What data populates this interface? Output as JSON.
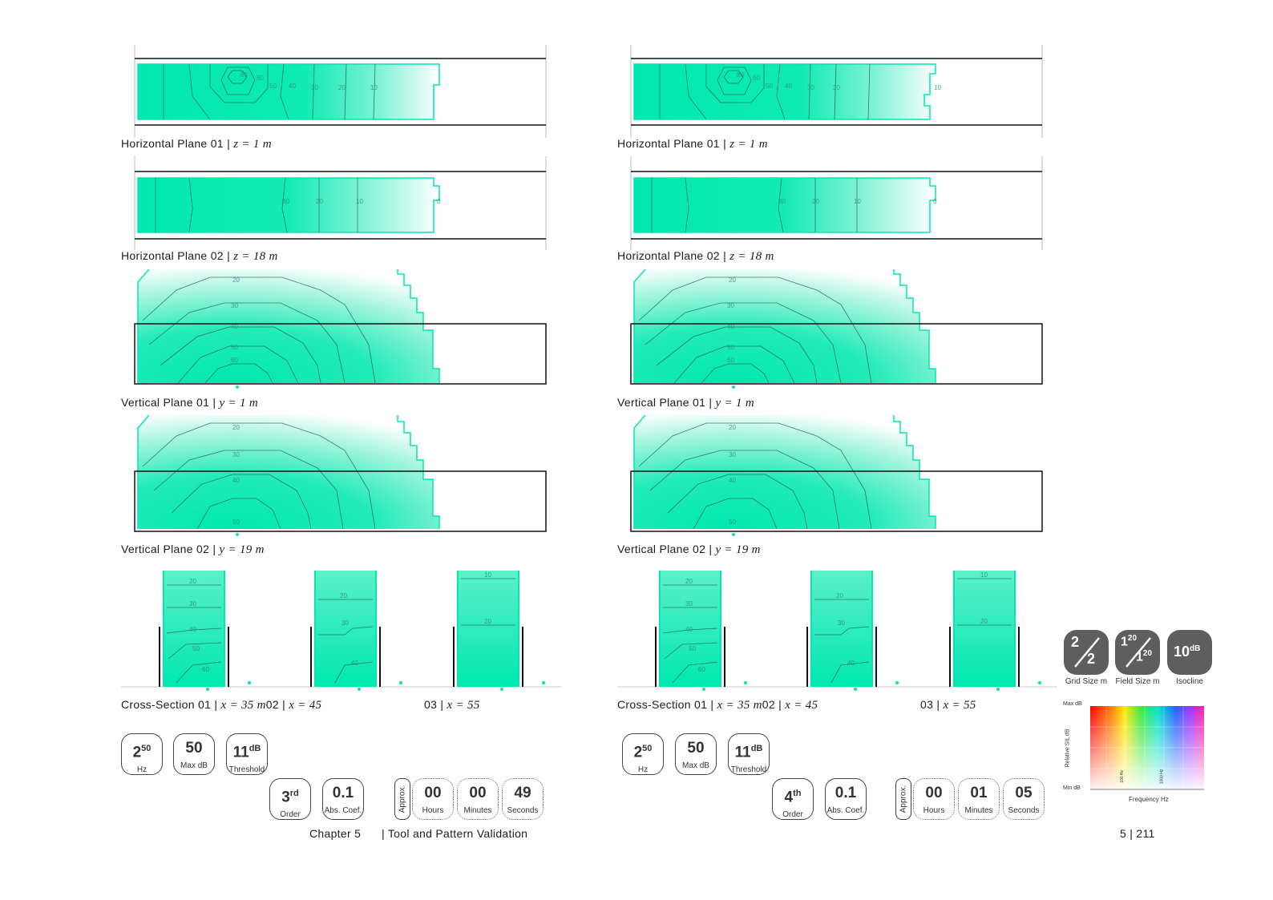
{
  "colors": {
    "accent": "#00e8b0",
    "contour": "#1f5e4a",
    "frame": "#111111"
  },
  "captions": {
    "left": {
      "hp1": "Horizontal Plane 01  |  ",
      "hp1_eq": "z = 1 m",
      "hp2": "Horizontal Plane 02  |  ",
      "hp2_eq": "z = 18 m",
      "vp1": "Vertical Plane 01  |  ",
      "vp1_eq": "y = 1 m",
      "vp2": "Vertical Plane 02  |  ",
      "vp2_eq": "y = 19 m",
      "cs1": "Cross-Section 01  |  ",
      "cs1_eq": "x = 35 m",
      "cs2": "02  |  ",
      "cs2_eq": "x = 45",
      "cs3": "03  |  ",
      "cs3_eq": "x = 55"
    },
    "right": {
      "hp1": "Horizontal Plane 01  |  ",
      "hp1_eq": "z = 1 m",
      "hp2": "Horizontal Plane 02  |  ",
      "hp2_eq": "z = 18 m",
      "vp1": "Vertical Plane 01  |  ",
      "vp1_eq": "y = 1 m",
      "vp2": "Vertical Plane 02  |  ",
      "vp2_eq": "y = 19 m",
      "cs1": "Cross-Section 01  |  ",
      "cs1_eq": "x = 35 m",
      "cs2": "02  |  ",
      "cs2_eq": "x = 45",
      "cs3": "03  |  ",
      "cs3_eq": "x = 55"
    }
  },
  "contour_labels": {
    "hp1": [
      "80",
      "60",
      "50",
      "40",
      "30",
      "20",
      "10"
    ],
    "hp2": [
      "30",
      "20",
      "10",
      "0"
    ],
    "vp1": [
      "20",
      "30",
      "40",
      "50",
      "60"
    ],
    "vp2": [
      "20",
      "30",
      "40",
      "50"
    ],
    "cs1": [
      "20",
      "30",
      "40",
      "50",
      "60"
    ],
    "cs2": [
      "20",
      "30",
      "40"
    ],
    "cs3": [
      "10",
      "20"
    ]
  },
  "left_params": {
    "freq": {
      "main": "2",
      "sup": "50",
      "label": "Hz"
    },
    "maxdb": {
      "main": "50",
      "label": "Max dB"
    },
    "threshold": {
      "main": "11",
      "sup": "dB",
      "label": "Threshold"
    },
    "order": {
      "main": "3",
      "sup": "rd",
      "label": "Order"
    },
    "abs": {
      "main": "0.1",
      "label": "Abs. Coef."
    },
    "approx": "Approx.",
    "hours": {
      "main": "00",
      "label": "Hours"
    },
    "minutes": {
      "main": "00",
      "label": "Minutes"
    },
    "seconds": {
      "main": "49",
      "label": "Seconds"
    }
  },
  "right_params": {
    "freq": {
      "main": "2",
      "sup": "50",
      "label": "Hz"
    },
    "maxdb": {
      "main": "50",
      "label": "Max dB"
    },
    "threshold": {
      "main": "11",
      "sup": "dB",
      "label": "Threshold"
    },
    "order": {
      "main": "4",
      "sup": "th",
      "label": "Order"
    },
    "abs": {
      "main": "0.1",
      "label": "Abs. Coef."
    },
    "approx": "Approx.",
    "hours": {
      "main": "00",
      "label": "Hours"
    },
    "minutes": {
      "main": "01",
      "label": "Minutes"
    },
    "seconds": {
      "main": "05",
      "label": "Seconds"
    }
  },
  "legend": {
    "grid": {
      "a": "2",
      "b": "2",
      "label": "Grid Size m"
    },
    "field": {
      "a": "1",
      "a_sup": "20",
      "b": "1",
      "b_sup": "20",
      "label": "Field Size m"
    },
    "iso": {
      "main": "10",
      "sup": "dB",
      "label": "Isocline"
    },
    "spectrum": {
      "max": "Max dB",
      "min": "Min dB",
      "ylabel": "Relative SIL dB",
      "xlabel": "Frequency Hz",
      "t1": "100 Hz",
      "t2": "1000 Hz"
    }
  },
  "footer": {
    "chapter": "Chapter 5",
    "title": "| Tool and Pattern Validation",
    "page": "5 | 211"
  }
}
